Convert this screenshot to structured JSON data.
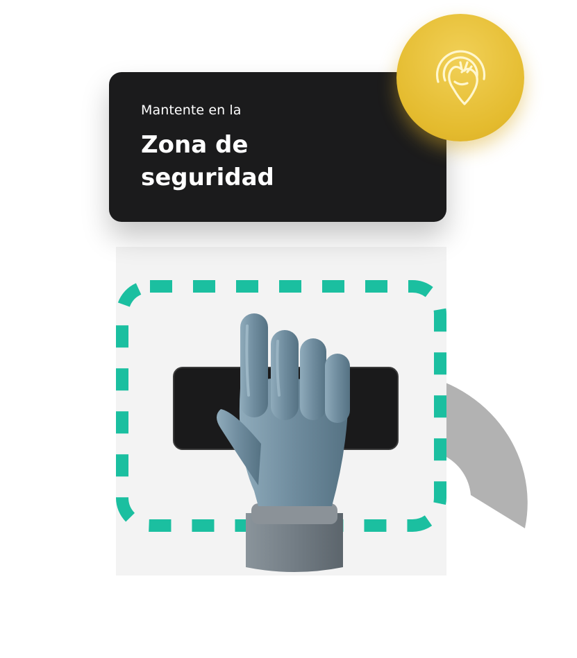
{
  "card": {
    "subtitle": "Mantente en la",
    "title": "Zona de seguridad"
  },
  "badge": {
    "icon": "heart-target-icon",
    "color": "#e4bb2e"
  },
  "colors": {
    "card_bg": "#1b1b1c",
    "safe_zone": "#1bbfa0",
    "hand": "#6f8c9e",
    "ring": "#b2b2b2"
  }
}
